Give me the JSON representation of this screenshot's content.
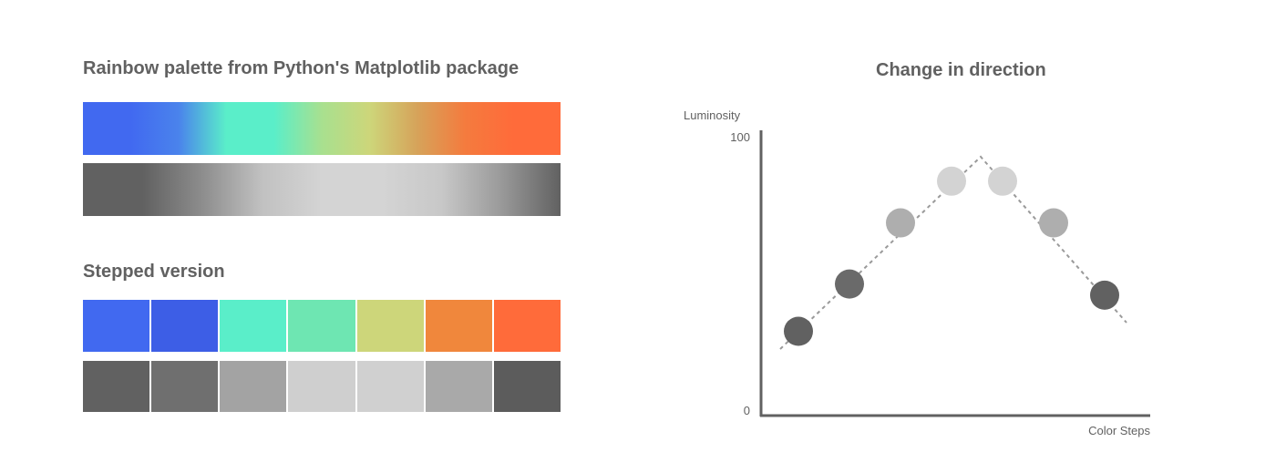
{
  "left_panel": {
    "title": "Rainbow palette from Python's Matplotlib package",
    "gradient_colors": [
      "#4169f0",
      "#4169f0",
      "#4a83ec",
      "#5aeec9",
      "#5aeec9",
      "#a8e08f",
      "#cdd67a",
      "#d6a35a",
      "#f47b3e",
      "#ff6b3a",
      "#ff6b3a"
    ],
    "gray_gradient_colors": [
      "#616161",
      "#616161",
      "#8d8d8d",
      "#c1c1c1",
      "#d4d4d4",
      "#d4d4d4",
      "#c8c8c8",
      "#9a9a9a",
      "#616161"
    ],
    "stepped_title": "Stepped version",
    "stepped_colors": [
      "#4169f0",
      "#3d5ee6",
      "#5aeec9",
      "#6ee6b2",
      "#cdd67a",
      "#f0873c",
      "#ff6b3a"
    ],
    "stepped_grays": [
      "#616161",
      "#6f6f6f",
      "#a3a3a3",
      "#cfcfcf",
      "#d0d0d0",
      "#a9a9a9",
      "#5c5c5c"
    ]
  },
  "right_panel": {
    "title": "Change in direction",
    "y_axis_label": "Luminosity",
    "y_max_label": "100",
    "y_min_label": "0",
    "x_axis_label": "Color Steps",
    "chart_data": {
      "type": "scatter",
      "title": "Change in direction",
      "xlabel": "Color Steps",
      "ylabel": "Luminosity",
      "ylim": [
        0,
        100
      ],
      "x": [
        1,
        2,
        3,
        4,
        5,
        6,
        7
      ],
      "y": [
        30,
        47,
        69,
        84,
        84,
        69,
        43
      ],
      "point_colors": [
        "#616161",
        "#6a6a6a",
        "#aeaeae",
        "#d3d3d3",
        "#d3d3d3",
        "#aeaeae",
        "#616161"
      ],
      "trend_line": "dashed",
      "grid": false
    }
  }
}
